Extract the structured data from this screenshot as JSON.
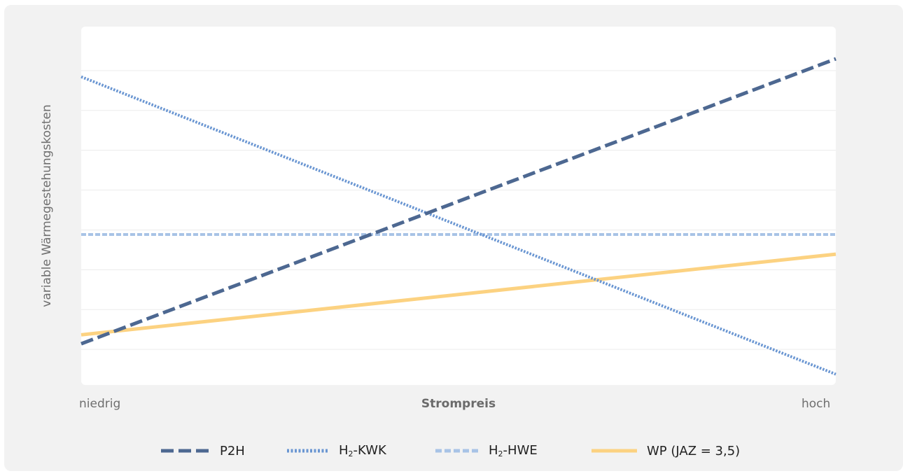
{
  "chart_data": {
    "type": "line",
    "title": "",
    "xlabel": "Strompreis",
    "ylabel": "variable Wärmegestehungskosten",
    "x_ticks": [
      "niedrig",
      "hoch"
    ],
    "xlim": [
      0,
      1
    ],
    "ylim": [
      0,
      1
    ],
    "grid": true,
    "legend_position": "bottom",
    "series": [
      {
        "name": "P2H",
        "x": [
          0,
          1
        ],
        "y": [
          0.115,
          0.91
        ],
        "color": "#4d6891",
        "style": "dashed"
      },
      {
        "name": "H₂-KWK",
        "x": [
          0,
          1
        ],
        "y": [
          0.86,
          0.03
        ],
        "color": "#6a96d2",
        "style": "dotted"
      },
      {
        "name": "H₂-HWE",
        "x": [
          0,
          1
        ],
        "y": [
          0.42,
          0.42
        ],
        "color": "#a8c3e6",
        "style": "dashed"
      },
      {
        "name": "WP (JAZ = 3,5)",
        "x": [
          0,
          1
        ],
        "y": [
          0.14,
          0.365
        ],
        "color": "#fcd281",
        "style": "solid"
      }
    ]
  },
  "legend": [
    {
      "text": "P2H"
    },
    {
      "pre": "H",
      "sub": "2",
      "post": "-KWK"
    },
    {
      "pre": "H",
      "sub": "2",
      "post": "-HWE"
    },
    {
      "text": "WP (JAZ = 3,5)"
    }
  ]
}
